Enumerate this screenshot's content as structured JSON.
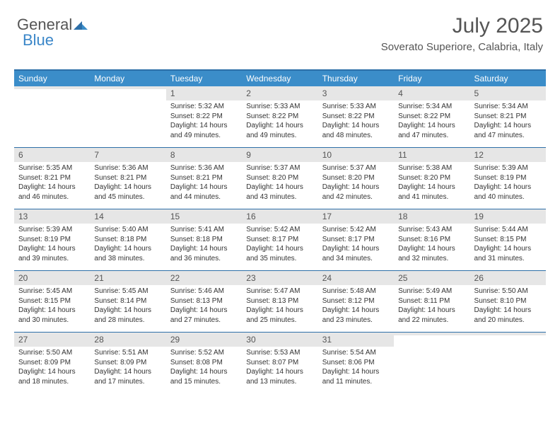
{
  "brand": {
    "general": "General",
    "blue": "Blue"
  },
  "header": {
    "month_title": "July 2025",
    "location": "Soverato Superiore, Calabria, Italy"
  },
  "colors": {
    "header_bar": "#3b8dc9",
    "border": "#2d6fa8",
    "daynum_bg": "#e6e6e6",
    "text": "#333333",
    "muted": "#555555",
    "logo_blue": "#3a86c8"
  },
  "day_labels": [
    "Sunday",
    "Monday",
    "Tuesday",
    "Wednesday",
    "Thursday",
    "Friday",
    "Saturday"
  ],
  "weeks": [
    [
      {
        "empty": true
      },
      {
        "empty": true
      },
      {
        "n": "1",
        "sunrise": "Sunrise: 5:32 AM",
        "sunset": "Sunset: 8:22 PM",
        "day1": "Daylight: 14 hours",
        "day2": "and 49 minutes."
      },
      {
        "n": "2",
        "sunrise": "Sunrise: 5:33 AM",
        "sunset": "Sunset: 8:22 PM",
        "day1": "Daylight: 14 hours",
        "day2": "and 49 minutes."
      },
      {
        "n": "3",
        "sunrise": "Sunrise: 5:33 AM",
        "sunset": "Sunset: 8:22 PM",
        "day1": "Daylight: 14 hours",
        "day2": "and 48 minutes."
      },
      {
        "n": "4",
        "sunrise": "Sunrise: 5:34 AM",
        "sunset": "Sunset: 8:22 PM",
        "day1": "Daylight: 14 hours",
        "day2": "and 47 minutes."
      },
      {
        "n": "5",
        "sunrise": "Sunrise: 5:34 AM",
        "sunset": "Sunset: 8:21 PM",
        "day1": "Daylight: 14 hours",
        "day2": "and 47 minutes."
      }
    ],
    [
      {
        "n": "6",
        "sunrise": "Sunrise: 5:35 AM",
        "sunset": "Sunset: 8:21 PM",
        "day1": "Daylight: 14 hours",
        "day2": "and 46 minutes."
      },
      {
        "n": "7",
        "sunrise": "Sunrise: 5:36 AM",
        "sunset": "Sunset: 8:21 PM",
        "day1": "Daylight: 14 hours",
        "day2": "and 45 minutes."
      },
      {
        "n": "8",
        "sunrise": "Sunrise: 5:36 AM",
        "sunset": "Sunset: 8:21 PM",
        "day1": "Daylight: 14 hours",
        "day2": "and 44 minutes."
      },
      {
        "n": "9",
        "sunrise": "Sunrise: 5:37 AM",
        "sunset": "Sunset: 8:20 PM",
        "day1": "Daylight: 14 hours",
        "day2": "and 43 minutes."
      },
      {
        "n": "10",
        "sunrise": "Sunrise: 5:37 AM",
        "sunset": "Sunset: 8:20 PM",
        "day1": "Daylight: 14 hours",
        "day2": "and 42 minutes."
      },
      {
        "n": "11",
        "sunrise": "Sunrise: 5:38 AM",
        "sunset": "Sunset: 8:20 PM",
        "day1": "Daylight: 14 hours",
        "day2": "and 41 minutes."
      },
      {
        "n": "12",
        "sunrise": "Sunrise: 5:39 AM",
        "sunset": "Sunset: 8:19 PM",
        "day1": "Daylight: 14 hours",
        "day2": "and 40 minutes."
      }
    ],
    [
      {
        "n": "13",
        "sunrise": "Sunrise: 5:39 AM",
        "sunset": "Sunset: 8:19 PM",
        "day1": "Daylight: 14 hours",
        "day2": "and 39 minutes."
      },
      {
        "n": "14",
        "sunrise": "Sunrise: 5:40 AM",
        "sunset": "Sunset: 8:18 PM",
        "day1": "Daylight: 14 hours",
        "day2": "and 38 minutes."
      },
      {
        "n": "15",
        "sunrise": "Sunrise: 5:41 AM",
        "sunset": "Sunset: 8:18 PM",
        "day1": "Daylight: 14 hours",
        "day2": "and 36 minutes."
      },
      {
        "n": "16",
        "sunrise": "Sunrise: 5:42 AM",
        "sunset": "Sunset: 8:17 PM",
        "day1": "Daylight: 14 hours",
        "day2": "and 35 minutes."
      },
      {
        "n": "17",
        "sunrise": "Sunrise: 5:42 AM",
        "sunset": "Sunset: 8:17 PM",
        "day1": "Daylight: 14 hours",
        "day2": "and 34 minutes."
      },
      {
        "n": "18",
        "sunrise": "Sunrise: 5:43 AM",
        "sunset": "Sunset: 8:16 PM",
        "day1": "Daylight: 14 hours",
        "day2": "and 32 minutes."
      },
      {
        "n": "19",
        "sunrise": "Sunrise: 5:44 AM",
        "sunset": "Sunset: 8:15 PM",
        "day1": "Daylight: 14 hours",
        "day2": "and 31 minutes."
      }
    ],
    [
      {
        "n": "20",
        "sunrise": "Sunrise: 5:45 AM",
        "sunset": "Sunset: 8:15 PM",
        "day1": "Daylight: 14 hours",
        "day2": "and 30 minutes."
      },
      {
        "n": "21",
        "sunrise": "Sunrise: 5:45 AM",
        "sunset": "Sunset: 8:14 PM",
        "day1": "Daylight: 14 hours",
        "day2": "and 28 minutes."
      },
      {
        "n": "22",
        "sunrise": "Sunrise: 5:46 AM",
        "sunset": "Sunset: 8:13 PM",
        "day1": "Daylight: 14 hours",
        "day2": "and 27 minutes."
      },
      {
        "n": "23",
        "sunrise": "Sunrise: 5:47 AM",
        "sunset": "Sunset: 8:13 PM",
        "day1": "Daylight: 14 hours",
        "day2": "and 25 minutes."
      },
      {
        "n": "24",
        "sunrise": "Sunrise: 5:48 AM",
        "sunset": "Sunset: 8:12 PM",
        "day1": "Daylight: 14 hours",
        "day2": "and 23 minutes."
      },
      {
        "n": "25",
        "sunrise": "Sunrise: 5:49 AM",
        "sunset": "Sunset: 8:11 PM",
        "day1": "Daylight: 14 hours",
        "day2": "and 22 minutes."
      },
      {
        "n": "26",
        "sunrise": "Sunrise: 5:50 AM",
        "sunset": "Sunset: 8:10 PM",
        "day1": "Daylight: 14 hours",
        "day2": "and 20 minutes."
      }
    ],
    [
      {
        "n": "27",
        "sunrise": "Sunrise: 5:50 AM",
        "sunset": "Sunset: 8:09 PM",
        "day1": "Daylight: 14 hours",
        "day2": "and 18 minutes."
      },
      {
        "n": "28",
        "sunrise": "Sunrise: 5:51 AM",
        "sunset": "Sunset: 8:09 PM",
        "day1": "Daylight: 14 hours",
        "day2": "and 17 minutes."
      },
      {
        "n": "29",
        "sunrise": "Sunrise: 5:52 AM",
        "sunset": "Sunset: 8:08 PM",
        "day1": "Daylight: 14 hours",
        "day2": "and 15 minutes."
      },
      {
        "n": "30",
        "sunrise": "Sunrise: 5:53 AM",
        "sunset": "Sunset: 8:07 PM",
        "day1": "Daylight: 14 hours",
        "day2": "and 13 minutes."
      },
      {
        "n": "31",
        "sunrise": "Sunrise: 5:54 AM",
        "sunset": "Sunset: 8:06 PM",
        "day1": "Daylight: 14 hours",
        "day2": "and 11 minutes."
      },
      {
        "empty": true
      },
      {
        "empty": true
      }
    ]
  ]
}
